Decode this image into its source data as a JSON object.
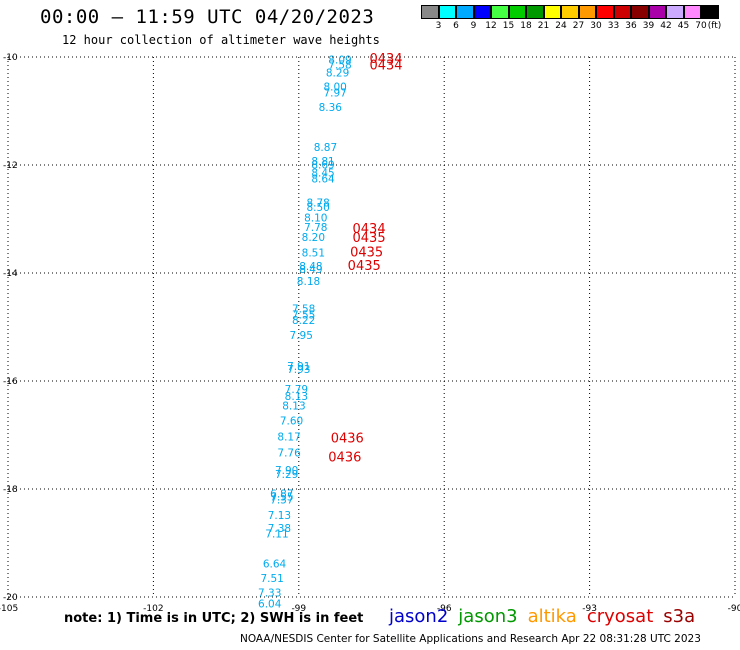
{
  "title": "00:00 – 11:59 UTC 04/20/2023",
  "subtitle": "12 hour collection of altimeter wave heights",
  "footer_note": "note: 1) Time is in UTC; 2) SWH is in feet",
  "credit": "NOAA/NESDIS Center for Satellite Applications and Research   Apr 22 08:31:28 UTC 2023",
  "missions": [
    {
      "label": "jason2",
      "color": "#0000cc"
    },
    {
      "label": "jason3",
      "color": "#009900"
    },
    {
      "label": "altika",
      "color": "#ff9900"
    },
    {
      "label": "cryosat",
      "color": "#dd0000"
    },
    {
      "label": "s3a",
      "color": "#990000"
    }
  ],
  "legend": {
    "colors": [
      "#888888",
      "#00ffff",
      "#00aaff",
      "#0000ff",
      "#44ff44",
      "#00cc00",
      "#009900",
      "#ffff00",
      "#ffcc00",
      "#ff9900",
      "#ff0000",
      "#cc0000",
      "#880000",
      "#aa00aa",
      "#ccaaff",
      "#ff88ff",
      "#000000"
    ],
    "labels": [
      "3",
      "6",
      "9",
      "12",
      "15",
      "18",
      "21",
      "24",
      "27",
      "30",
      "33",
      "36",
      "39",
      "42",
      "45",
      "70",
      "(ft)"
    ]
  },
  "chart_data": {
    "type": "scatter",
    "xlim": [
      -105,
      -90
    ],
    "ylim": [
      -20,
      -10
    ],
    "x_ticks": [
      -105,
      -102,
      -99,
      -96,
      -93,
      -90
    ],
    "y_ticks": [
      -10,
      -12,
      -14,
      -16,
      -18,
      -20
    ],
    "x_tick_labels": [
      "-105",
      "-102",
      "-99",
      "-96",
      "-93",
      "-90"
    ],
    "y_tick_labels": [
      "-10",
      "-12",
      "-14",
      "-16",
      "-18",
      "-20"
    ],
    "grid": true,
    "point_color": "#00aaee",
    "time_color": "#dd0000",
    "swh_points": [
      {
        "lon": -98.15,
        "lat": -10.05,
        "v": "8.09"
      },
      {
        "lon": -98.15,
        "lat": -10.14,
        "v": "7.58"
      },
      {
        "lon": -98.2,
        "lat": -10.29,
        "v": "8.29"
      },
      {
        "lon": -98.25,
        "lat": -10.55,
        "v": "8.00"
      },
      {
        "lon": -98.25,
        "lat": -10.66,
        "v": "7.97"
      },
      {
        "lon": -98.35,
        "lat": -10.93,
        "v": "8.36"
      },
      {
        "lon": -98.45,
        "lat": -11.67,
        "v": "8.87"
      },
      {
        "lon": -98.5,
        "lat": -11.93,
        "v": "8.81"
      },
      {
        "lon": -98.5,
        "lat": -11.99,
        "v": "8.69"
      },
      {
        "lon": -98.5,
        "lat": -12.14,
        "v": "8.45"
      },
      {
        "lon": -98.5,
        "lat": -12.25,
        "v": "8.64"
      },
      {
        "lon": -98.6,
        "lat": -12.69,
        "v": "8.78"
      },
      {
        "lon": -98.6,
        "lat": -12.78,
        "v": "8.50"
      },
      {
        "lon": -98.65,
        "lat": -12.97,
        "v": "8.10"
      },
      {
        "lon": -98.65,
        "lat": -13.15,
        "v": "7.78"
      },
      {
        "lon": -98.7,
        "lat": -13.33,
        "v": "8.20"
      },
      {
        "lon": -98.7,
        "lat": -13.62,
        "v": "8.51"
      },
      {
        "lon": -98.75,
        "lat": -13.87,
        "v": "8.48"
      },
      {
        "lon": -98.75,
        "lat": -13.93,
        "v": "8.49"
      },
      {
        "lon": -98.8,
        "lat": -14.15,
        "v": "8.18"
      },
      {
        "lon": -98.9,
        "lat": -14.66,
        "v": "7.58"
      },
      {
        "lon": -98.9,
        "lat": -14.77,
        "v": "7.55"
      },
      {
        "lon": -98.9,
        "lat": -14.87,
        "v": "8.22"
      },
      {
        "lon": -98.95,
        "lat": -15.15,
        "v": "7.95"
      },
      {
        "lon": -99.0,
        "lat": -15.72,
        "v": "7.91"
      },
      {
        "lon": -99.0,
        "lat": -15.78,
        "v": "7.93"
      },
      {
        "lon": -99.05,
        "lat": -16.15,
        "v": "7.79"
      },
      {
        "lon": -99.05,
        "lat": -16.28,
        "v": "8.13"
      },
      {
        "lon": -99.1,
        "lat": -16.45,
        "v": "8.13"
      },
      {
        "lon": -99.15,
        "lat": -16.73,
        "v": "7.60"
      },
      {
        "lon": -99.2,
        "lat": -17.03,
        "v": "8.17"
      },
      {
        "lon": -99.2,
        "lat": -17.32,
        "v": "7.76"
      },
      {
        "lon": -99.25,
        "lat": -17.65,
        "v": "7.90"
      },
      {
        "lon": -99.25,
        "lat": -17.72,
        "v": "7.29"
      },
      {
        "lon": -99.35,
        "lat": -18.08,
        "v": "6.87"
      },
      {
        "lon": -99.35,
        "lat": -18.14,
        "v": "7.55"
      },
      {
        "lon": -99.35,
        "lat": -18.19,
        "v": "7.37"
      },
      {
        "lon": -99.4,
        "lat": -18.48,
        "v": "7.13"
      },
      {
        "lon": -99.4,
        "lat": -18.72,
        "v": "7.38"
      },
      {
        "lon": -99.45,
        "lat": -18.82,
        "v": "7.11"
      },
      {
        "lon": -99.5,
        "lat": -19.38,
        "v": "6.64"
      },
      {
        "lon": -99.55,
        "lat": -19.65,
        "v": "7.51"
      },
      {
        "lon": -99.6,
        "lat": -19.92,
        "v": "7.33"
      },
      {
        "lon": -99.6,
        "lat": -20.12,
        "v": "6.04"
      }
    ],
    "time_labels": [
      {
        "lon": -97.2,
        "lat": -10.02,
        "v": "0434"
      },
      {
        "lon": -97.2,
        "lat": -10.14,
        "v": "0434"
      },
      {
        "lon": -97.55,
        "lat": -13.17,
        "v": "0434"
      },
      {
        "lon": -97.55,
        "lat": -13.33,
        "v": "0435"
      },
      {
        "lon": -97.6,
        "lat": -13.6,
        "v": "0435"
      },
      {
        "lon": -97.65,
        "lat": -13.85,
        "v": "0435"
      },
      {
        "lon": -98.0,
        "lat": -17.05,
        "v": "0436"
      },
      {
        "lon": -98.05,
        "lat": -17.4,
        "v": "0436"
      }
    ]
  }
}
